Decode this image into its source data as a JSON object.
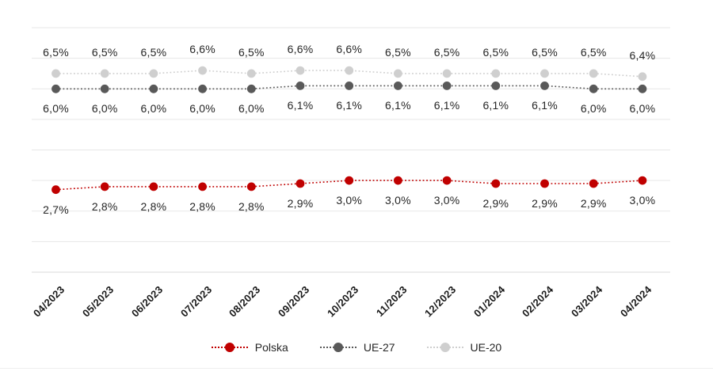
{
  "chart_data": {
    "type": "line",
    "categories": [
      "04/2023",
      "05/2023",
      "06/2023",
      "07/2023",
      "08/2023",
      "09/2023",
      "10/2023",
      "11/2023",
      "12/2023",
      "01/2024",
      "02/2024",
      "03/2024",
      "04/2024"
    ],
    "series": [
      {
        "name": "Polska",
        "color": "#c00000",
        "values": [
          2.7,
          2.8,
          2.8,
          2.8,
          2.8,
          2.9,
          3.0,
          3.0,
          3.0,
          2.9,
          2.9,
          2.9,
          3.0
        ],
        "labels": [
          "2,7%",
          "2,8%",
          "2,8%",
          "2,8%",
          "2,8%",
          "2,9%",
          "3,0%",
          "3,0%",
          "3,0%",
          "2,9%",
          "2,9%",
          "2,9%",
          "3,0%"
        ],
        "label_position": "below"
      },
      {
        "name": "UE-27",
        "color": "#595959",
        "values": [
          6.0,
          6.0,
          6.0,
          6.0,
          6.0,
          6.1,
          6.1,
          6.1,
          6.1,
          6.1,
          6.1,
          6.0,
          6.0
        ],
        "labels": [
          "6,0%",
          "6,0%",
          "6,0%",
          "6,0%",
          "6,0%",
          "6,1%",
          "6,1%",
          "6,1%",
          "6,1%",
          "6,1%",
          "6,1%",
          "6,0%",
          "6,0%"
        ],
        "label_position": "below"
      },
      {
        "name": "UE-20",
        "color": "#cfcfcf",
        "values": [
          6.5,
          6.5,
          6.5,
          6.6,
          6.5,
          6.6,
          6.6,
          6.5,
          6.5,
          6.5,
          6.5,
          6.5,
          6.4
        ],
        "labels": [
          "6,5%",
          "6,5%",
          "6,5%",
          "6,6%",
          "6,5%",
          "6,6%",
          "6,6%",
          "6,5%",
          "6,5%",
          "6,5%",
          "6,5%",
          "6,5%",
          "6,4%"
        ],
        "label_position": "above"
      }
    ],
    "ylim": [
      0,
      8
    ],
    "gridline_step": 1,
    "grid": "horizontal",
    "gridline_color": "#e7e7e7",
    "axis_line_color": "#d8d8d8",
    "legend_position": "bottom",
    "line_style": "dotted",
    "marker": "circle"
  }
}
